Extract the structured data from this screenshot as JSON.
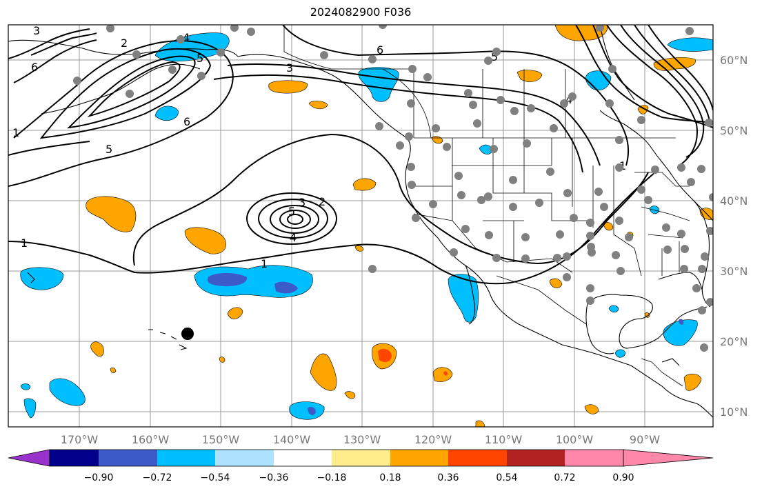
{
  "title": "2024082900 F036",
  "map": {
    "lon_ticks": [
      "170°W",
      "160°W",
      "150°W",
      "140°W",
      "130°W",
      "120°W",
      "110°W",
      "100°W",
      "90°W"
    ],
    "lat_ticks": [
      "60°N",
      "50°N",
      "40°N",
      "30°N",
      "20°N",
      "10°N"
    ],
    "contour_labels": [
      "3",
      "2",
      "4",
      "6",
      "6",
      "5",
      "5",
      "1",
      "1",
      "3",
      "2",
      "5",
      "4",
      "1",
      "6",
      "5",
      "3",
      "1",
      "4"
    ]
  },
  "colorbar": {
    "ticks": [
      "−0.90",
      "−0.72",
      "−0.54",
      "−0.36",
      "−0.18",
      "0.18",
      "0.36",
      "0.54",
      "0.72",
      "0.90"
    ],
    "colors": [
      "#9932cc",
      "#00008b",
      "#3c5ac8",
      "#00bfff",
      "#aee3ff",
      "#ffffff",
      "#ffec8b",
      "#ffa500",
      "#ff4500",
      "#b22222",
      "#ff88aa"
    ]
  },
  "colors": {
    "blue_fill": "#00bfff",
    "dark_blue_fill": "#3c5ac8",
    "orange_fill": "#ffa500",
    "red_fill": "#ff4500",
    "station_dot": "#808080"
  }
}
